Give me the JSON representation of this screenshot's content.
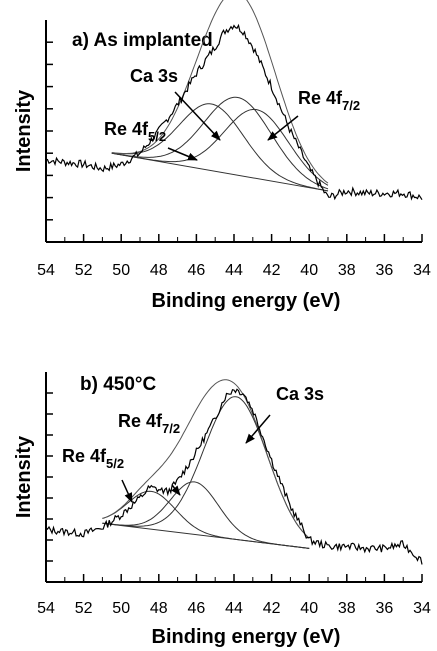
{
  "chart_data": [
    {
      "type": "line",
      "title": "a) As implanted",
      "xlabel": "Binding energy (eV)",
      "ylabel": "Intensity",
      "xlim": [
        54,
        34
      ],
      "x_reversed": true,
      "xticks": [
        "54",
        "52",
        "50",
        "48",
        "46",
        "44",
        "42",
        "40",
        "38",
        "36",
        "34"
      ],
      "series": [
        {
          "name": "measured",
          "role": "data",
          "x": [
            54,
            53,
            52,
            51,
            50,
            49,
            48,
            47,
            46,
            45,
            44.5,
            44,
            43.5,
            43,
            42,
            41,
            40,
            39,
            38,
            37,
            36,
            35,
            34
          ],
          "y": [
            0.37,
            0.36,
            0.35,
            0.33,
            0.35,
            0.4,
            0.5,
            0.62,
            0.76,
            0.88,
            0.95,
            0.98,
            0.95,
            0.88,
            0.7,
            0.5,
            0.33,
            0.2,
            0.23,
            0.22,
            0.22,
            0.22,
            0.2
          ]
        },
        {
          "name": "background",
          "role": "fit",
          "x": [
            50.5,
            39
          ],
          "y": [
            0.4,
            0.23
          ]
        },
        {
          "name": "Re 4f5/2",
          "role": "fit",
          "center": 45.2,
          "height": 0.3,
          "fwhm": 4.0
        },
        {
          "name": "Ca 3s",
          "role": "fit",
          "center": 43.8,
          "height": 0.35,
          "fwhm": 4.2
        },
        {
          "name": "Re 4f7/2",
          "role": "fit",
          "center": 42.8,
          "height": 0.31,
          "fwhm": 4.0
        },
        {
          "name": "envelope",
          "role": "fit",
          "composite": true
        }
      ],
      "annotations": [
        {
          "text": "Re 4f",
          "sub": "5/2",
          "points_to": "Re 4f5/2"
        },
        {
          "text": "Ca 3s",
          "sub": "",
          "points_to": "Ca 3s"
        },
        {
          "text": "Re 4f",
          "sub": "7/2",
          "points_to": "Re 4f7/2"
        }
      ]
    },
    {
      "type": "line",
      "title": "b) 450°C",
      "xlabel": "Binding energy (eV)",
      "ylabel": "Intensity",
      "xlim": [
        54,
        34
      ],
      "x_reversed": true,
      "xticks": [
        "54",
        "52",
        "50",
        "48",
        "46",
        "44",
        "42",
        "40",
        "38",
        "36",
        "34"
      ],
      "series": [
        {
          "name": "measured",
          "role": "data",
          "x": [
            54,
            53,
            52,
            51,
            50,
            49,
            48.5,
            48,
            47.5,
            47,
            46.5,
            46,
            45,
            44.5,
            44,
            43.5,
            43,
            42,
            41,
            40,
            39,
            38,
            37,
            36,
            35,
            34
          ],
          "y": [
            0.25,
            0.24,
            0.23,
            0.26,
            0.32,
            0.4,
            0.45,
            0.44,
            0.43,
            0.48,
            0.55,
            0.62,
            0.78,
            0.88,
            0.92,
            0.9,
            0.82,
            0.58,
            0.36,
            0.2,
            0.17,
            0.17,
            0.16,
            0.16,
            0.18,
            0.1
          ]
        },
        {
          "name": "background",
          "role": "fit",
          "x": [
            51,
            40
          ],
          "y": [
            0.28,
            0.16
          ]
        },
        {
          "name": "Re 4f5/2",
          "role": "fit",
          "center": 48.4,
          "height": 0.18,
          "fwhm": 3.0
        },
        {
          "name": "Re 4f7/2",
          "role": "fit",
          "center": 46.1,
          "height": 0.25,
          "fwhm": 3.0
        },
        {
          "name": "Ca 3s",
          "role": "fit",
          "center": 43.9,
          "height": 0.68,
          "fwhm": 4.0
        },
        {
          "name": "envelope",
          "role": "fit",
          "composite": true
        }
      ],
      "annotations": [
        {
          "text": "Re 4f",
          "sub": "5/2",
          "points_to": "Re 4f5/2"
        },
        {
          "text": "Re 4f",
          "sub": "7/2",
          "points_to": "Re 4f7/2"
        },
        {
          "text": "Ca 3s",
          "sub": "",
          "points_to": "Ca 3s"
        }
      ]
    }
  ]
}
